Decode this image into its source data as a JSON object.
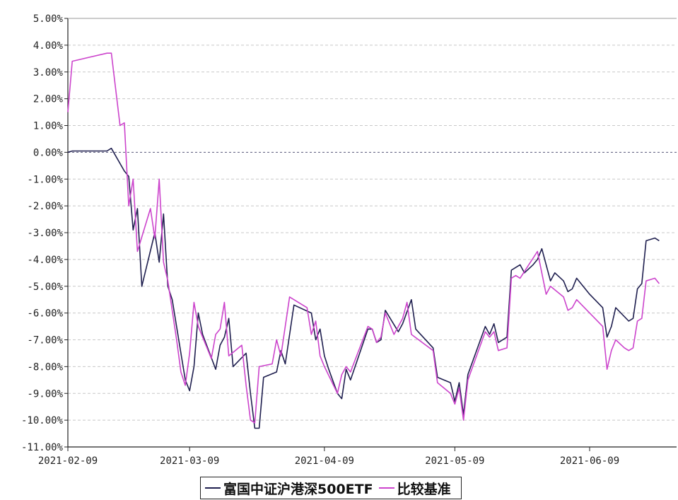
{
  "chart_data": {
    "type": "line",
    "y_ticks": [
      "5.00%",
      "4.00%",
      "3.00%",
      "2.00%",
      "1.00%",
      "0.00%",
      "-1.00%",
      "-2.00%",
      "-3.00%",
      "-4.00%",
      "-5.00%",
      "-6.00%",
      "-7.00%",
      "-8.00%",
      "-9.00%",
      "-10.00%",
      "-11.00%"
    ],
    "ylim": [
      -11,
      5
    ],
    "xlim": [
      0,
      140
    ],
    "x_ticks": [
      {
        "label": "2021-02-09",
        "x": 0
      },
      {
        "label": "2021-03-09",
        "x": 28
      },
      {
        "label": "2021-04-09",
        "x": 59
      },
      {
        "label": "2021-05-09",
        "x": 89
      },
      {
        "label": "2021-06-09",
        "x": 120
      }
    ],
    "grid": true,
    "legend_position": "bottom-center",
    "series": [
      {
        "name": "富国中证沪港深500ETF",
        "color": "#1f1f4f",
        "points": [
          [
            0,
            0
          ],
          [
            1,
            0.05
          ],
          [
            9,
            0.05
          ],
          [
            10,
            0.15
          ],
          [
            13,
            -0.7
          ],
          [
            14,
            -0.9
          ],
          [
            15,
            -2.9
          ],
          [
            16,
            -2.1
          ],
          [
            17,
            -5.0
          ],
          [
            20,
            -3.0
          ],
          [
            21,
            -4.1
          ],
          [
            22,
            -2.3
          ],
          [
            23,
            -5.0
          ],
          [
            24,
            -5.5
          ],
          [
            26,
            -7.5
          ],
          [
            27,
            -8.5
          ],
          [
            28,
            -8.9
          ],
          [
            29,
            -8.0
          ],
          [
            30,
            -6.0
          ],
          [
            31,
            -6.8
          ],
          [
            34,
            -8.1
          ],
          [
            35,
            -7.2
          ],
          [
            36,
            -6.9
          ],
          [
            37,
            -6.2
          ],
          [
            38,
            -8.0
          ],
          [
            41,
            -7.5
          ],
          [
            42,
            -9.0
          ],
          [
            43,
            -10.3
          ],
          [
            44,
            -10.3
          ],
          [
            45,
            -8.4
          ],
          [
            48,
            -8.2
          ],
          [
            49,
            -7.4
          ],
          [
            50,
            -7.9
          ],
          [
            52,
            -5.7
          ],
          [
            56,
            -6.0
          ],
          [
            57,
            -7.0
          ],
          [
            58,
            -6.6
          ],
          [
            59,
            -7.6
          ],
          [
            60,
            -8.1
          ],
          [
            62,
            -9.0
          ],
          [
            63,
            -9.2
          ],
          [
            64,
            -8.1
          ],
          [
            65,
            -8.5
          ],
          [
            69,
            -6.6
          ],
          [
            70,
            -6.6
          ],
          [
            71,
            -7.1
          ],
          [
            72,
            -7.0
          ],
          [
            73,
            -5.9
          ],
          [
            76,
            -6.7
          ],
          [
            77,
            -6.4
          ],
          [
            79,
            -5.5
          ],
          [
            80,
            -6.6
          ],
          [
            84,
            -7.3
          ],
          [
            85,
            -8.4
          ],
          [
            88,
            -8.6
          ],
          [
            89,
            -9.3
          ],
          [
            90,
            -8.6
          ],
          [
            91,
            -9.8
          ],
          [
            92,
            -8.3
          ],
          [
            96,
            -6.5
          ],
          [
            97,
            -6.8
          ],
          [
            98,
            -6.4
          ],
          [
            99,
            -7.1
          ],
          [
            101,
            -6.9
          ],
          [
            102,
            -4.4
          ],
          [
            103,
            -4.3
          ],
          [
            104,
            -4.2
          ],
          [
            105,
            -4.5
          ],
          [
            107,
            -4.2
          ],
          [
            108,
            -4.0
          ],
          [
            109,
            -3.6
          ],
          [
            111,
            -4.8
          ],
          [
            112,
            -4.5
          ],
          [
            114,
            -4.8
          ],
          [
            115,
            -5.2
          ],
          [
            116,
            -5.1
          ],
          [
            117,
            -4.7
          ],
          [
            120,
            -5.3
          ],
          [
            123,
            -5.8
          ],
          [
            124,
            -6.9
          ],
          [
            125,
            -6.5
          ],
          [
            126,
            -5.8
          ],
          [
            129,
            -6.3
          ],
          [
            130,
            -6.2
          ],
          [
            131,
            -5.1
          ],
          [
            132,
            -4.9
          ],
          [
            133,
            -3.3
          ],
          [
            135,
            -3.2
          ],
          [
            136,
            -3.3
          ]
        ]
      },
      {
        "name": "比较基准",
        "color": "#cc44cc",
        "points": [
          [
            0,
            1.5
          ],
          [
            1,
            3.4
          ],
          [
            9,
            3.7
          ],
          [
            10,
            3.7
          ],
          [
            12,
            1.0
          ],
          [
            13,
            1.1
          ],
          [
            14,
            -2.0
          ],
          [
            15,
            -1.0
          ],
          [
            16,
            -3.7
          ],
          [
            19,
            -2.1
          ],
          [
            20,
            -3.2
          ],
          [
            21,
            -1.0
          ],
          [
            22,
            -4.1
          ],
          [
            23,
            -4.8
          ],
          [
            25,
            -7.0
          ],
          [
            26,
            -8.2
          ],
          [
            27,
            -8.7
          ],
          [
            28,
            -7.5
          ],
          [
            29,
            -5.6
          ],
          [
            30,
            -6.5
          ],
          [
            33,
            -7.7
          ],
          [
            34,
            -6.8
          ],
          [
            35,
            -6.6
          ],
          [
            36,
            -5.6
          ],
          [
            37,
            -7.6
          ],
          [
            40,
            -7.2
          ],
          [
            41,
            -8.7
          ],
          [
            42,
            -10.0
          ],
          [
            43,
            -10.1
          ],
          [
            44,
            -8.0
          ],
          [
            47,
            -7.9
          ],
          [
            48,
            -7.0
          ],
          [
            49,
            -7.6
          ],
          [
            51,
            -5.4
          ],
          [
            55,
            -5.8
          ],
          [
            56,
            -6.8
          ],
          [
            57,
            -6.3
          ],
          [
            58,
            -7.6
          ],
          [
            59,
            -8.0
          ],
          [
            62,
            -9.0
          ],
          [
            63,
            -8.3
          ],
          [
            64,
            -8.0
          ],
          [
            65,
            -8.2
          ],
          [
            69,
            -6.5
          ],
          [
            70,
            -6.6
          ],
          [
            71,
            -7.1
          ],
          [
            72,
            -6.9
          ],
          [
            73,
            -6.0
          ],
          [
            75,
            -6.8
          ],
          [
            77,
            -6.2
          ],
          [
            78,
            -5.6
          ],
          [
            79,
            -6.8
          ],
          [
            84,
            -7.4
          ],
          [
            85,
            -8.6
          ],
          [
            88,
            -9.0
          ],
          [
            89,
            -9.4
          ],
          [
            90,
            -8.8
          ],
          [
            91,
            -10.0
          ],
          [
            92,
            -8.5
          ],
          [
            96,
            -6.7
          ],
          [
            97,
            -6.9
          ],
          [
            98,
            -6.7
          ],
          [
            99,
            -7.4
          ],
          [
            101,
            -7.3
          ],
          [
            102,
            -4.7
          ],
          [
            103,
            -4.6
          ],
          [
            104,
            -4.7
          ],
          [
            106,
            -4.2
          ],
          [
            108,
            -3.7
          ],
          [
            110,
            -5.3
          ],
          [
            111,
            -5.0
          ],
          [
            114,
            -5.4
          ],
          [
            115,
            -5.9
          ],
          [
            116,
            -5.8
          ],
          [
            117,
            -5.5
          ],
          [
            120,
            -6.0
          ],
          [
            123,
            -6.5
          ],
          [
            124,
            -8.1
          ],
          [
            125,
            -7.4
          ],
          [
            126,
            -7.0
          ],
          [
            128,
            -7.3
          ],
          [
            129,
            -7.4
          ],
          [
            130,
            -7.3
          ],
          [
            131,
            -6.3
          ],
          [
            132,
            -6.2
          ],
          [
            133,
            -4.8
          ],
          [
            135,
            -4.7
          ],
          [
            136,
            -4.9
          ]
        ]
      }
    ]
  }
}
